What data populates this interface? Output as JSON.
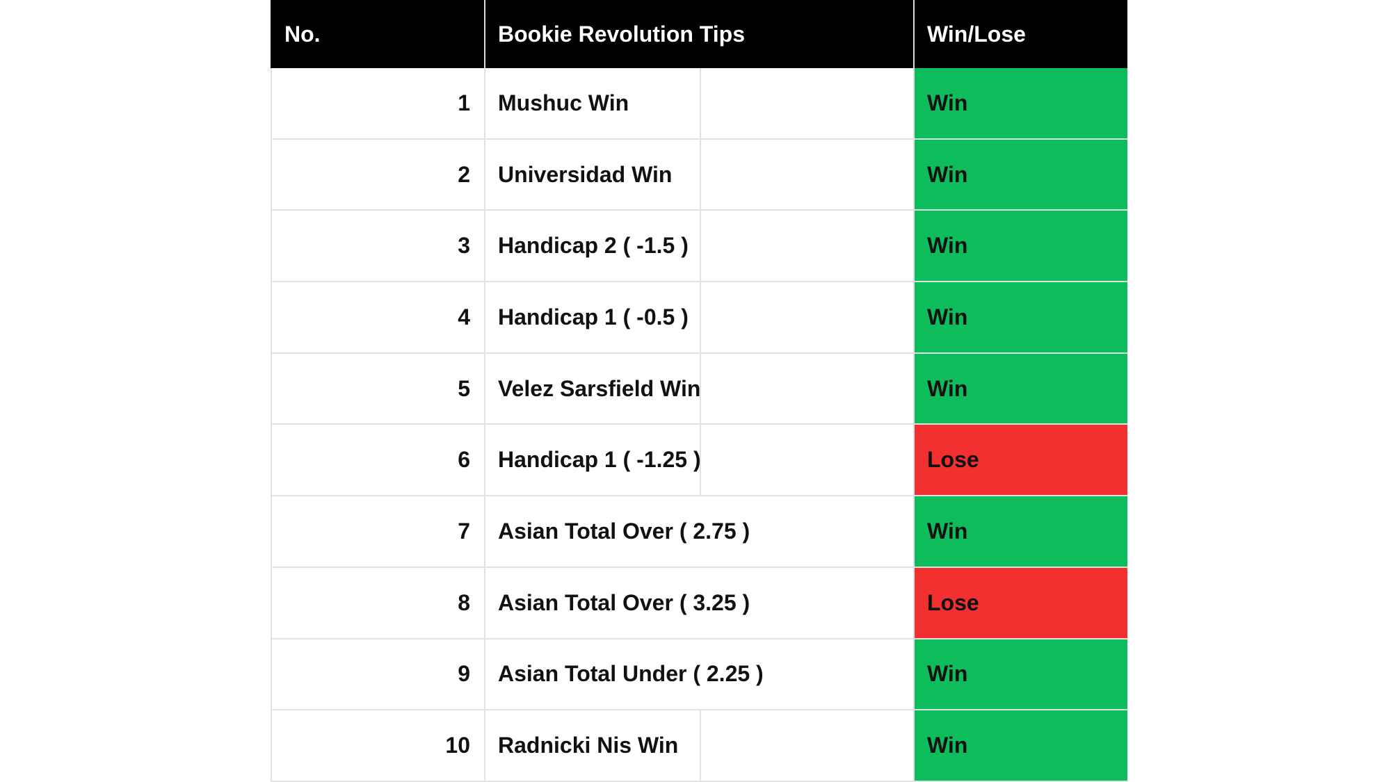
{
  "header": {
    "no": "No.",
    "tips": "Bookie Revolution Tips",
    "result": "Win/Lose"
  },
  "table": {
    "rows": [
      {
        "no": 1,
        "tip": "Mushuc Win",
        "result": "Win",
        "color": "#0dbd5c"
      },
      {
        "no": 2,
        "tip": "Universidad Win",
        "result": "Win",
        "color": "#0dbd5c"
      },
      {
        "no": 3,
        "tip": "Handicap 2 ( -1.5 )",
        "result": "Win",
        "color": "#0dbd5c"
      },
      {
        "no": 4,
        "tip": "Handicap 1 ( -0.5 )",
        "result": "Win",
        "color": "#0dbd5c"
      },
      {
        "no": 5,
        "tip": "Velez Sarsfield Win",
        "result": "Win",
        "color": "#0dbd5c"
      },
      {
        "no": 6,
        "tip": "Handicap 1 ( -1.25 )",
        "result": "Lose",
        "color": "#f23030"
      },
      {
        "no": 7,
        "tip": "Asian Total Over ( 2.75 )",
        "result": "Win",
        "color": "#0dbd5c"
      },
      {
        "no": 8,
        "tip": "Asian Total Over ( 3.25 )",
        "result": "Lose",
        "color": "#f23030"
      },
      {
        "no": 9,
        "tip": "Asian Total Under ( 2.25 )",
        "result": "Win",
        "color": "#0dbd5c"
      },
      {
        "no": 10,
        "tip": "Radnicki Nis Win",
        "result": "Win",
        "color": "#0dbd5c"
      }
    ]
  }
}
